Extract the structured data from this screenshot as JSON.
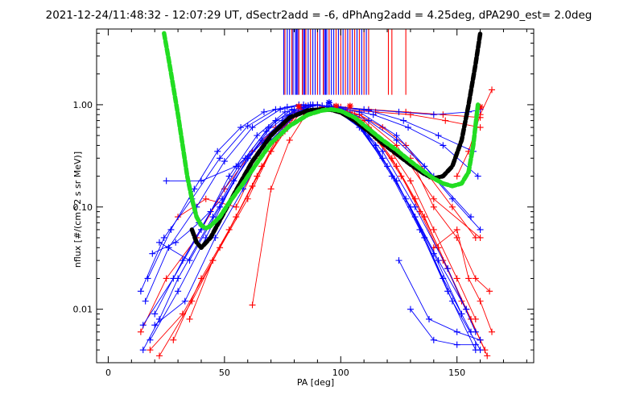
{
  "chart_data": {
    "type": "line",
    "title": "2021-12-24/11:48:32 - 12:07:29 UT, dSectr2add = -6, dPhAng2add = 4.25deg, dPA290_est=   2.0deg",
    "xlabel": "PA [deg]",
    "ylabel": "nflux [#/(cm^2 s sr MeV)]",
    "xlim": [
      -5,
      183
    ],
    "ylim": [
      0.003,
      5.5
    ],
    "yscale": "log",
    "grid": false,
    "x_ticks": [
      {
        "value": 0,
        "label": "0"
      },
      {
        "value": 50,
        "label": "50"
      },
      {
        "value": 100,
        "label": "100"
      },
      {
        "value": 150,
        "label": "150"
      }
    ],
    "y_ticks": [
      {
        "value": 0.01,
        "label": "0.01"
      },
      {
        "value": 0.1,
        "label": "0.10"
      },
      {
        "value": 1.0,
        "label": "1.00"
      }
    ],
    "colors": {
      "red_series": "#ff0000",
      "blue_series": "#0000ff",
      "fit_black": "#000000",
      "fit_green": "#22dd22"
    },
    "series": [
      {
        "color": "red",
        "x": [
          18,
          32,
          45,
          60,
          70,
          78,
          83
        ],
        "y": [
          0.004,
          0.009,
          0.03,
          0.12,
          0.35,
          0.7,
          0.95
        ]
      },
      {
        "color": "red",
        "x": [
          22,
          36,
          48,
          62,
          72,
          80,
          85
        ],
        "y": [
          0.0035,
          0.012,
          0.04,
          0.16,
          0.45,
          0.8,
          0.97
        ]
      },
      {
        "color": "red",
        "x": [
          28,
          40,
          52,
          64,
          74,
          82,
          88
        ],
        "y": [
          0.005,
          0.02,
          0.06,
          0.2,
          0.5,
          0.85,
          0.98
        ]
      },
      {
        "color": "red",
        "x": [
          35,
          45,
          55,
          66,
          76,
          84,
          90
        ],
        "y": [
          0.008,
          0.03,
          0.08,
          0.25,
          0.55,
          0.9,
          1.0
        ]
      },
      {
        "color": "red",
        "x": [
          62,
          70,
          78,
          85,
          92
        ],
        "y": [
          0.011,
          0.15,
          0.45,
          0.8,
          0.95
        ]
      },
      {
        "color": "red",
        "x": [
          14,
          25,
          38,
          50,
          62,
          72,
          80
        ],
        "y": [
          0.006,
          0.02,
          0.05,
          0.15,
          0.35,
          0.6,
          0.85
        ]
      },
      {
        "color": "red",
        "x": [
          30,
          42,
          55,
          65,
          75,
          84
        ],
        "y": [
          0.08,
          0.12,
          0.1,
          0.3,
          0.6,
          0.9
        ]
      },
      {
        "color": "red",
        "x": [
          100,
          110,
          120,
          130,
          140,
          150,
          158
        ],
        "y": [
          0.95,
          0.7,
          0.4,
          0.18,
          0.06,
          0.02,
          0.008
        ]
      },
      {
        "color": "red",
        "x": [
          102,
          112,
          122,
          132,
          142,
          152,
          160
        ],
        "y": [
          0.9,
          0.6,
          0.3,
          0.12,
          0.04,
          0.012,
          0.005
        ]
      },
      {
        "color": "red",
        "x": [
          104,
          114,
          124,
          134,
          144,
          154,
          162
        ],
        "y": [
          0.85,
          0.5,
          0.25,
          0.09,
          0.03,
          0.01,
          0.004
        ]
      },
      {
        "color": "red",
        "x": [
          106,
          116,
          126,
          136,
          146,
          156,
          163
        ],
        "y": [
          0.8,
          0.45,
          0.2,
          0.08,
          0.025,
          0.008,
          0.0035
        ]
      },
      {
        "color": "red",
        "x": [
          98,
          108,
          118,
          128,
          138,
          148,
          158
        ],
        "y": [
          0.92,
          0.8,
          0.6,
          0.4,
          0.2,
          0.1,
          0.05
        ]
      },
      {
        "color": "red",
        "x": [
          100,
          115,
          130,
          145,
          160
        ],
        "y": [
          0.9,
          0.85,
          0.8,
          0.7,
          0.6
        ]
      },
      {
        "color": "red",
        "x": [
          96,
          112,
          128,
          144,
          160
        ],
        "y": [
          0.95,
          0.9,
          0.85,
          0.8,
          0.75
        ]
      },
      {
        "color": "red",
        "x": [
          130,
          140,
          150,
          158,
          164
        ],
        "y": [
          0.3,
          0.1,
          0.05,
          0.02,
          0.015
        ]
      },
      {
        "color": "red",
        "x": [
          140,
          150,
          155,
          160,
          165
        ],
        "y": [
          0.04,
          0.06,
          0.02,
          0.012,
          0.006
        ]
      },
      {
        "color": "red",
        "x": [
          150,
          155,
          160,
          165
        ],
        "y": [
          0.2,
          0.35,
          0.8,
          1.4
        ]
      },
      {
        "color": "red",
        "x": [
          108,
          124,
          140,
          160
        ],
        "y": [
          0.8,
          0.4,
          0.12,
          0.05
        ]
      },
      {
        "color": "blue",
        "x": [
          15,
          28,
          40,
          52,
          64,
          76,
          86
        ],
        "y": [
          0.007,
          0.02,
          0.06,
          0.2,
          0.5,
          0.85,
          0.98
        ]
      },
      {
        "color": "blue",
        "x": [
          18,
          30,
          42,
          54,
          66,
          78,
          88
        ],
        "y": [
          0.005,
          0.015,
          0.05,
          0.18,
          0.45,
          0.8,
          0.97
        ]
      },
      {
        "color": "blue",
        "x": [
          20,
          32,
          44,
          56,
          68,
          80,
          90
        ],
        "y": [
          0.009,
          0.03,
          0.09,
          0.25,
          0.55,
          0.88,
          1.0
        ]
      },
      {
        "color": "blue",
        "x": [
          16,
          26,
          38,
          50,
          62,
          74,
          84
        ],
        "y": [
          0.012,
          0.04,
          0.1,
          0.28,
          0.6,
          0.9,
          1.0
        ]
      },
      {
        "color": "blue",
        "x": [
          14,
          24,
          36,
          48,
          60,
          72,
          82
        ],
        "y": [
          0.015,
          0.05,
          0.12,
          0.3,
          0.62,
          0.9,
          1.0
        ]
      },
      {
        "color": "blue",
        "x": [
          17,
          27,
          37,
          47,
          57,
          67,
          77,
          87
        ],
        "y": [
          0.02,
          0.06,
          0.15,
          0.35,
          0.6,
          0.85,
          0.95,
          1.0
        ]
      },
      {
        "color": "blue",
        "x": [
          19,
          29,
          39,
          49,
          59,
          69,
          79
        ],
        "y": [
          0.035,
          0.045,
          0.07,
          0.12,
          0.3,
          0.6,
          0.9
        ]
      },
      {
        "color": "blue",
        "x": [
          22,
          35,
          48,
          60,
          72,
          84
        ],
        "y": [
          0.045,
          0.03,
          0.1,
          0.3,
          0.7,
          0.95
        ]
      },
      {
        "color": "blue",
        "x": [
          15,
          22,
          30,
          45,
          60,
          75,
          88
        ],
        "y": [
          0.004,
          0.008,
          0.02,
          0.08,
          0.3,
          0.7,
          0.98
        ]
      },
      {
        "color": "blue",
        "x": [
          25,
          40,
          55,
          70,
          85
        ],
        "y": [
          0.18,
          0.18,
          0.25,
          0.5,
          0.95
        ]
      },
      {
        "color": "blue",
        "x": [
          20,
          33,
          46,
          58,
          70,
          82
        ],
        "y": [
          0.007,
          0.012,
          0.05,
          0.15,
          0.45,
          0.85
        ]
      },
      {
        "color": "blue",
        "x": [
          96,
          108,
          120,
          132,
          144,
          156
        ],
        "y": [
          0.95,
          0.6,
          0.25,
          0.08,
          0.02,
          0.006
        ]
      },
      {
        "color": "blue",
        "x": [
          94,
          106,
          118,
          130,
          142,
          154
        ],
        "y": [
          0.97,
          0.7,
          0.3,
          0.1,
          0.03,
          0.01
        ]
      },
      {
        "color": "blue",
        "x": [
          98,
          110,
          122,
          134,
          146,
          158
        ],
        "y": [
          0.92,
          0.55,
          0.2,
          0.06,
          0.015,
          0.004
        ]
      },
      {
        "color": "blue",
        "x": [
          100,
          112,
          124,
          136,
          148,
          160
        ],
        "y": [
          0.9,
          0.5,
          0.18,
          0.05,
          0.012,
          0.004
        ]
      },
      {
        "color": "blue",
        "x": [
          102,
          115,
          128,
          140,
          152
        ],
        "y": [
          0.85,
          0.4,
          0.12,
          0.035,
          0.009
        ]
      },
      {
        "color": "blue",
        "x": [
          104,
          118,
          132,
          146,
          158
        ],
        "y": [
          0.8,
          0.35,
          0.1,
          0.025,
          0.006
        ]
      },
      {
        "color": "blue",
        "x": [
          95,
          110,
          125,
          140,
          155,
          160
        ],
        "y": [
          0.98,
          0.9,
          0.85,
          0.8,
          0.85,
          0.9
        ]
      },
      {
        "color": "blue",
        "x": [
          97,
          112,
          127,
          142,
          157
        ],
        "y": [
          0.95,
          0.88,
          0.7,
          0.5,
          0.35
        ]
      },
      {
        "color": "blue",
        "x": [
          99,
          114,
          129,
          144,
          159
        ],
        "y": [
          0.93,
          0.8,
          0.6,
          0.4,
          0.2
        ]
      },
      {
        "color": "blue",
        "x": [
          92,
          108,
          124,
          140,
          156
        ],
        "y": [
          0.98,
          0.85,
          0.5,
          0.2,
          0.08
        ]
      },
      {
        "color": "blue",
        "x": [
          130,
          140,
          150,
          158
        ],
        "y": [
          0.01,
          0.005,
          0.0045,
          0.0045
        ]
      },
      {
        "color": "blue",
        "x": [
          125,
          138,
          150,
          160
        ],
        "y": [
          0.03,
          0.008,
          0.006,
          0.005
        ]
      },
      {
        "color": "blue",
        "x": [
          88,
          100,
          112,
          124,
          136,
          148,
          160
        ],
        "y": [
          1.0,
          0.9,
          0.7,
          0.45,
          0.25,
          0.12,
          0.06
        ]
      }
    ],
    "fit_black": {
      "x": [
        36,
        38,
        40,
        44,
        50,
        56,
        62,
        70,
        78,
        86,
        92,
        96,
        100,
        106,
        112,
        118,
        124,
        130,
        136,
        140,
        144,
        148,
        152,
        155,
        158,
        160
      ],
      "y": [
        0.06,
        0.045,
        0.04,
        0.05,
        0.09,
        0.16,
        0.28,
        0.5,
        0.75,
        0.88,
        0.9,
        0.89,
        0.84,
        0.7,
        0.55,
        0.42,
        0.33,
        0.26,
        0.21,
        0.19,
        0.2,
        0.25,
        0.45,
        1.0,
        2.5,
        5.0
      ]
    },
    "fit_green": {
      "x": [
        24,
        26,
        28,
        30,
        32,
        34,
        36,
        38,
        40,
        42,
        44,
        48,
        52,
        58,
        64,
        70,
        78,
        86,
        92,
        96,
        100,
        106,
        112,
        118,
        124,
        130,
        136,
        140,
        144,
        148,
        152,
        155,
        157,
        159
      ],
      "y": [
        5.0,
        2.8,
        1.5,
        0.8,
        0.4,
        0.2,
        0.12,
        0.08,
        0.066,
        0.062,
        0.065,
        0.08,
        0.11,
        0.17,
        0.27,
        0.42,
        0.62,
        0.8,
        0.88,
        0.9,
        0.87,
        0.75,
        0.58,
        0.45,
        0.36,
        0.28,
        0.22,
        0.19,
        0.17,
        0.16,
        0.17,
        0.22,
        0.4,
        1.0
      ]
    },
    "sticks": {
      "band_y": [
        1.25,
        5.5
      ],
      "red_x": [
        76,
        79,
        82,
        83.5,
        85,
        87,
        90,
        92.5,
        95,
        98,
        100,
        102,
        104,
        106,
        108,
        110,
        112,
        120.5,
        122,
        128
      ],
      "blue_x": [
        75.5,
        77,
        78,
        79.5,
        80.5,
        81,
        81.5,
        84,
        84.5,
        86,
        88,
        89,
        91,
        93,
        93.5,
        94,
        96,
        97,
        99,
        101,
        103,
        105,
        107,
        109,
        111
      ]
    },
    "star_markers": [
      {
        "x": 82,
        "y": 0.96,
        "color": "red"
      },
      {
        "x": 98,
        "y": 0.97,
        "color": "red"
      },
      {
        "x": 104,
        "y": 0.97,
        "color": "red"
      },
      {
        "x": 95,
        "y": 1.05,
        "color": "blue"
      },
      {
        "x": 160,
        "y": 0.95,
        "color": "red"
      }
    ]
  }
}
